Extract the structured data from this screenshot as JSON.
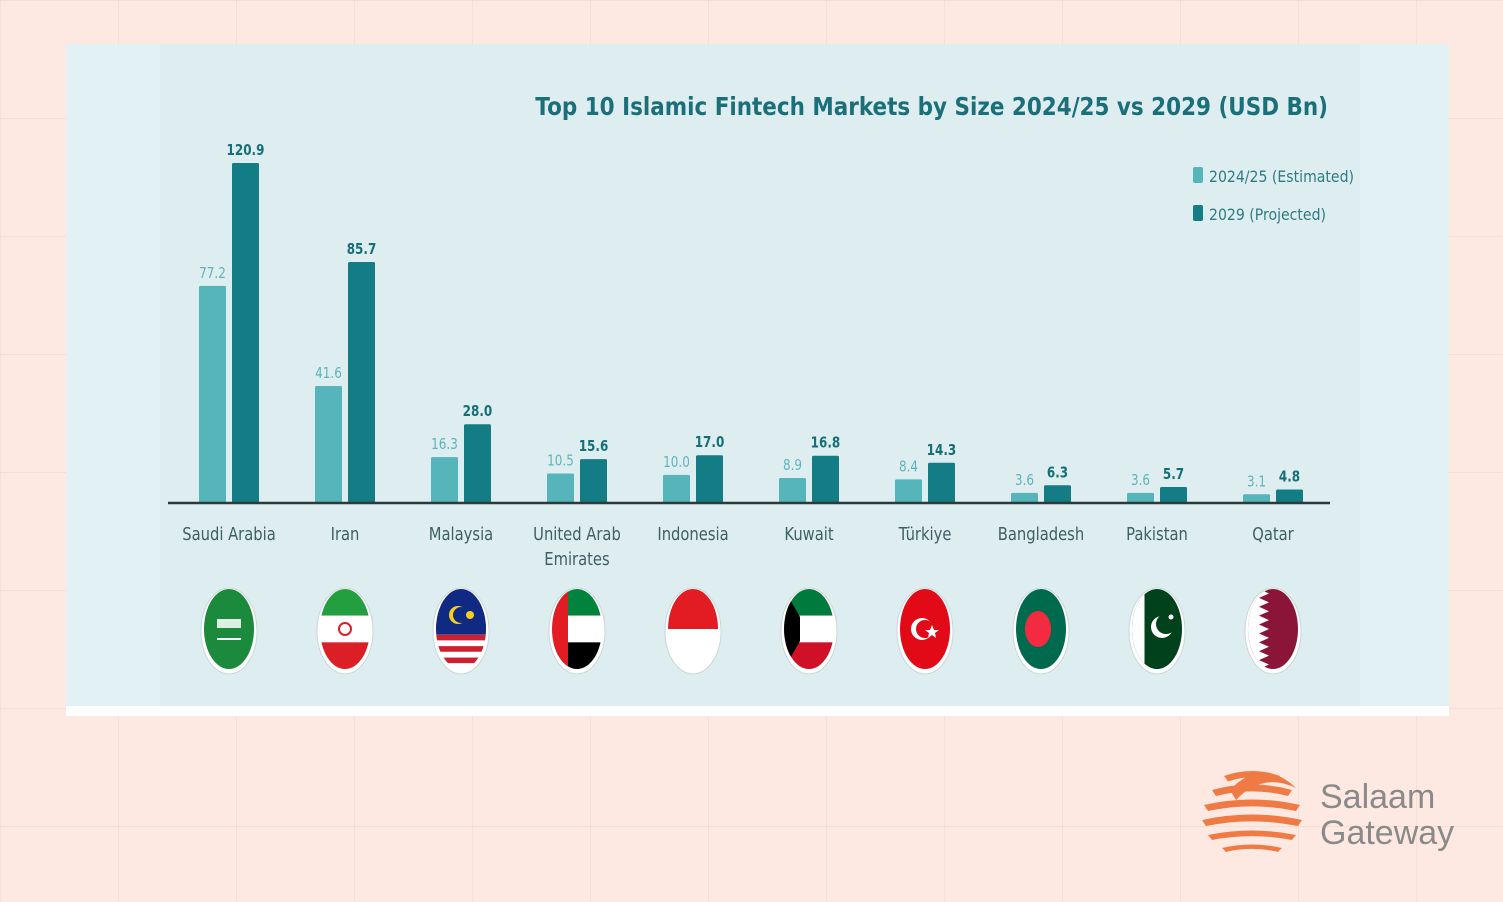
{
  "chart_data": {
    "type": "bar",
    "title": "Top 10 Islamic Fintech Markets by Size 2024/25 vs 2029 (USD Bn)",
    "categories": [
      "Saudi Arabia",
      "Iran",
      "Malaysia",
      "United Arab Emirates",
      "Indonesia",
      "Kuwait",
      "Türkiye",
      "Bangladesh",
      "Pakistan",
      "Qatar"
    ],
    "category_lines": [
      [
        "Saudi Arabia"
      ],
      [
        "Iran"
      ],
      [
        "Malaysia"
      ],
      [
        "United Arab",
        "Emirates"
      ],
      [
        "Indonesia"
      ],
      [
        "Kuwait"
      ],
      [
        "Türkiye"
      ],
      [
        "Bangladesh"
      ],
      [
        "Pakistan"
      ],
      [
        "Qatar"
      ]
    ],
    "series": [
      {
        "name": "2024/25 (Estimated)",
        "color": "#56b4bb",
        "values": [
          77.2,
          41.6,
          16.3,
          10.5,
          10.0,
          8.9,
          8.4,
          3.6,
          3.6,
          3.1
        ],
        "labels": [
          "77.2",
          "41.6",
          "16.3",
          "10.5",
          "10.0",
          "8.9",
          "8.4",
          "3.6",
          "3.6",
          "3.1"
        ]
      },
      {
        "name": "2029 (Projected)",
        "color": "#137c84",
        "values": [
          120.9,
          85.7,
          28.0,
          15.6,
          17.0,
          16.8,
          14.3,
          6.3,
          5.7,
          4.8
        ],
        "labels": [
          "120.9",
          "85.7",
          "28.0",
          "15.6",
          "17.0",
          "16.8",
          "14.3",
          "6.3",
          "5.7",
          "4.8"
        ]
      }
    ],
    "ylim": [
      0,
      120.9
    ],
    "grid": false,
    "legend_position": "top-right",
    "flags": [
      "saudi-arabia-flag-icon",
      "iran-flag-icon",
      "malaysia-flag-icon",
      "uae-flag-icon",
      "indonesia-flag-icon",
      "kuwait-flag-icon",
      "turkiye-flag-icon",
      "bangladesh-flag-icon",
      "pakistan-flag-icon",
      "qatar-flag-icon"
    ]
  },
  "brand": {
    "name_line1": "Salaam",
    "name_line2": "Gateway",
    "logo_icon": "salaam-gateway-logo-icon",
    "logo_color": "#f07a44"
  }
}
